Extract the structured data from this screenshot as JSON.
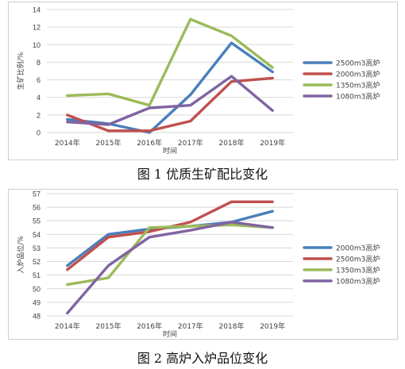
{
  "chart_data": [
    {
      "type": "line",
      "caption": "图 1   优质生矿配比变化",
      "xlabel": "时间",
      "ylabel": "生矿比例/%",
      "categories": [
        "2014年",
        "2015年",
        "2016年",
        "2017年",
        "2018年",
        "2019年"
      ],
      "ylim": [
        0,
        14
      ],
      "yticks": [
        0,
        2,
        4,
        6,
        8,
        10,
        12,
        14
      ],
      "grid": true,
      "legend_position": "right",
      "series": [
        {
          "name": "2500m3高炉",
          "color": "#4a7ebb",
          "values": [
            1.5,
            1.0,
            0.0,
            4.3,
            10.2,
            6.9
          ]
        },
        {
          "name": "2000m3高炉",
          "color": "#c0504d",
          "values": [
            2.0,
            0.2,
            0.2,
            1.3,
            5.8,
            6.2
          ]
        },
        {
          "name": "1350m3高炉",
          "color": "#9bbb59",
          "values": [
            4.2,
            4.4,
            3.1,
            12.9,
            11.0,
            7.4
          ]
        },
        {
          "name": "1080m3高炉",
          "color": "#8064a2",
          "values": [
            1.2,
            0.9,
            2.8,
            3.1,
            6.4,
            2.5
          ]
        }
      ]
    },
    {
      "type": "line",
      "caption": "图 2   高炉入炉品位变化",
      "xlabel": "时间",
      "ylabel": "入炉品位/%",
      "categories": [
        "2014年",
        "2015年",
        "2016年",
        "2017年",
        "2018年",
        "2019年"
      ],
      "ylim": [
        48,
        57
      ],
      "yticks": [
        48,
        49,
        50,
        51,
        52,
        53,
        54,
        55,
        56,
        57
      ],
      "grid": true,
      "legend_position": "right",
      "series": [
        {
          "name": "2000m3高炉",
          "color": "#4a7ebb",
          "values": [
            51.7,
            54.0,
            54.4,
            54.6,
            54.9,
            55.7
          ]
        },
        {
          "name": "2500m3高炉",
          "color": "#c0504d",
          "values": [
            51.4,
            53.8,
            54.2,
            54.9,
            56.4,
            56.4
          ]
        },
        {
          "name": "1350m3高炉",
          "color": "#9bbb59",
          "values": [
            50.3,
            50.8,
            54.5,
            54.6,
            54.7,
            54.5
          ]
        },
        {
          "name": "1080m3高炉",
          "color": "#8064a2",
          "values": [
            48.2,
            51.7,
            53.8,
            54.3,
            54.9,
            54.5
          ]
        }
      ]
    }
  ]
}
